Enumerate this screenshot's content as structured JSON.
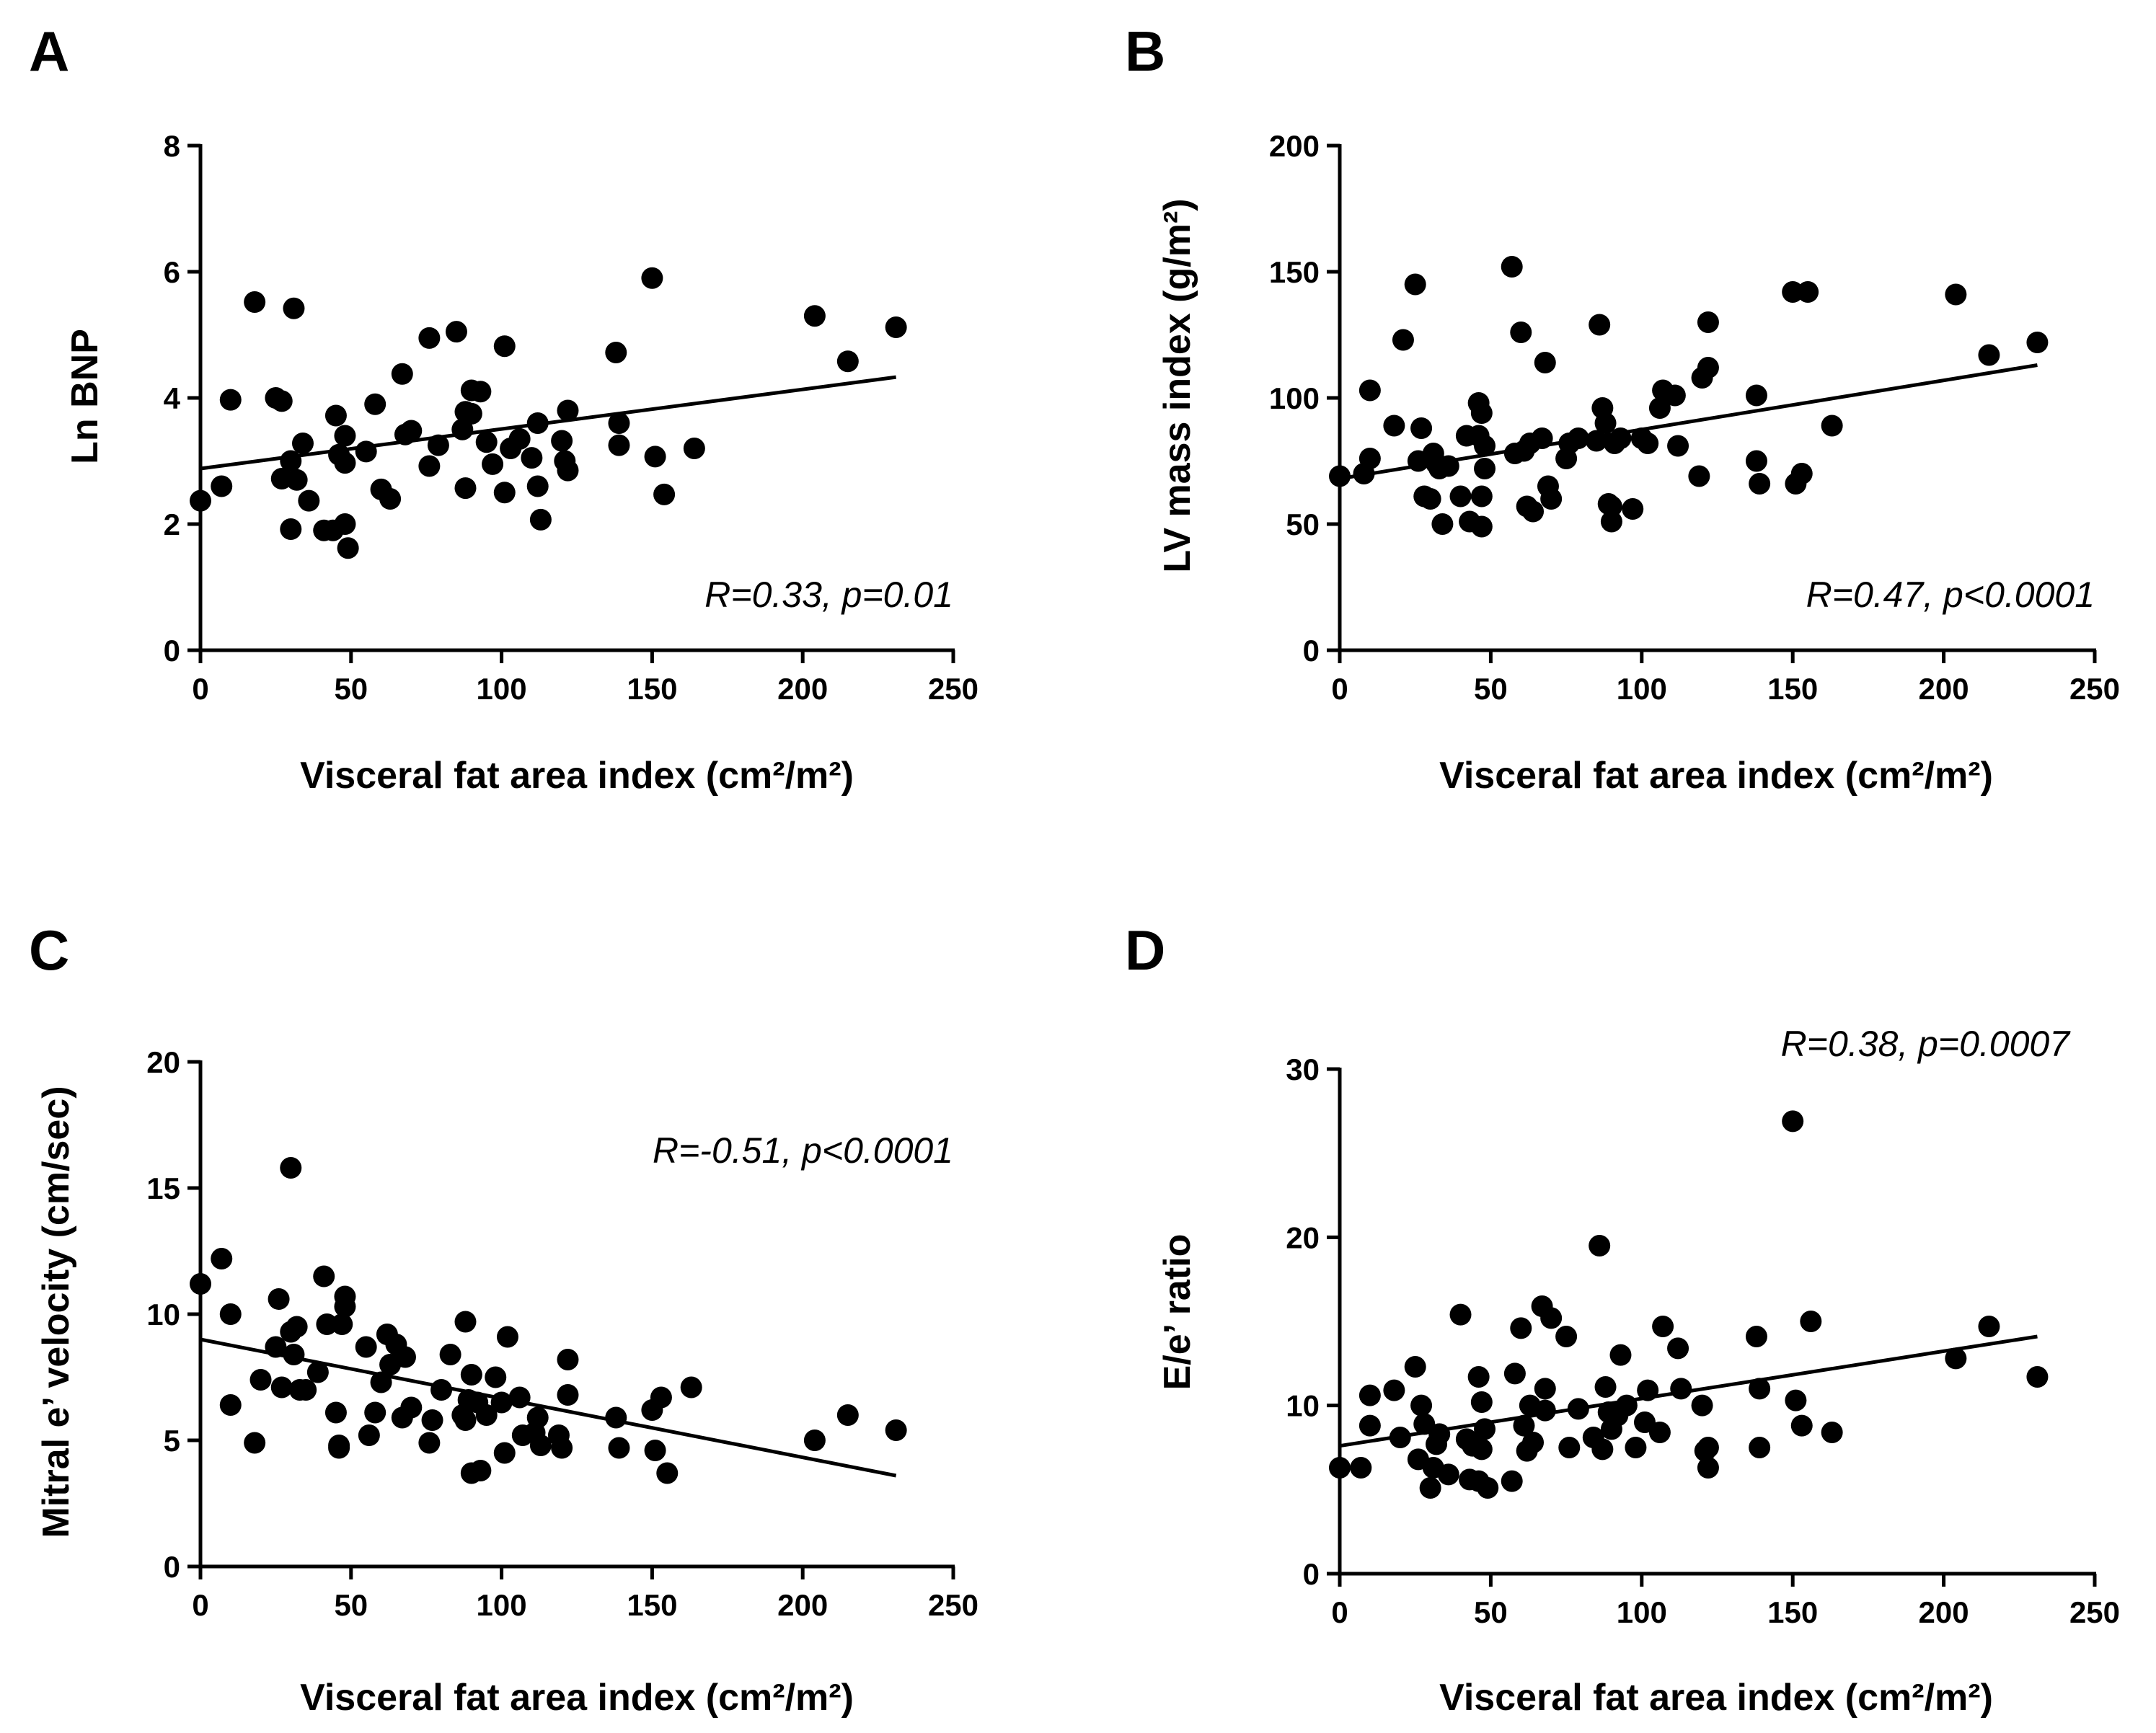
{
  "figure": {
    "panels": [
      "A",
      "B",
      "C",
      "D"
    ]
  },
  "chart_data": [
    {
      "panel": "A",
      "type": "scatter",
      "title": "",
      "xlabel": "Visceral fat area index (cm²/m²)",
      "ylabel": "Ln BNP",
      "xlim": [
        0,
        250
      ],
      "ylim": [
        0,
        8
      ],
      "xticks": [
        0,
        50,
        100,
        150,
        200,
        250
      ],
      "yticks": [
        0,
        2,
        4,
        6,
        8
      ],
      "annotation": "R=0.33, p=0.01",
      "annotation_position": "bottom-right",
      "fit": {
        "x": [
          0,
          231
        ],
        "y": [
          2.88,
          4.33
        ]
      },
      "points": [
        [
          0,
          2.37
        ],
        [
          7,
          2.6
        ],
        [
          10,
          3.97
        ],
        [
          18,
          5.52
        ],
        [
          25,
          4.0
        ],
        [
          27,
          3.95
        ],
        [
          27,
          2.72
        ],
        [
          30,
          3.0
        ],
        [
          30,
          1.92
        ],
        [
          31,
          5.42
        ],
        [
          32,
          2.7
        ],
        [
          34,
          3.28
        ],
        [
          36,
          2.37
        ],
        [
          41,
          1.9
        ],
        [
          44,
          1.9
        ],
        [
          45,
          3.72
        ],
        [
          46,
          3.1
        ],
        [
          48,
          2.97
        ],
        [
          48,
          3.4
        ],
        [
          48,
          2.0
        ],
        [
          49,
          1.62
        ],
        [
          55,
          3.15
        ],
        [
          58,
          3.9
        ],
        [
          60,
          2.55
        ],
        [
          63,
          2.4
        ],
        [
          67,
          4.38
        ],
        [
          68,
          3.42
        ],
        [
          70,
          3.48
        ],
        [
          76,
          2.92
        ],
        [
          76,
          4.95
        ],
        [
          79,
          3.25
        ],
        [
          85,
          5.05
        ],
        [
          87,
          3.5
        ],
        [
          88,
          2.57
        ],
        [
          88,
          3.78
        ],
        [
          90,
          4.12
        ],
        [
          90,
          3.75
        ],
        [
          93,
          4.1
        ],
        [
          95,
          3.3
        ],
        [
          97,
          2.95
        ],
        [
          101,
          2.5
        ],
        [
          101,
          4.82
        ],
        [
          103,
          3.2
        ],
        [
          106,
          3.35
        ],
        [
          110,
          3.05
        ],
        [
          112,
          2.6
        ],
        [
          112,
          3.6
        ],
        [
          113,
          2.07
        ],
        [
          120,
          3.32
        ],
        [
          121,
          3.0
        ],
        [
          122,
          2.85
        ],
        [
          122,
          3.8
        ],
        [
          138,
          4.72
        ],
        [
          139,
          3.25
        ],
        [
          139,
          3.6
        ],
        [
          150,
          5.9
        ],
        [
          151,
          3.07
        ],
        [
          154,
          2.47
        ],
        [
          164,
          3.2
        ],
        [
          204,
          5.3
        ],
        [
          215,
          4.58
        ],
        [
          231,
          5.12
        ]
      ]
    },
    {
      "panel": "B",
      "type": "scatter",
      "title": "",
      "xlabel": "Visceral fat area index (cm²/m²)",
      "ylabel": "LV mass index (g/m²)",
      "xlim": [
        0,
        250
      ],
      "ylim": [
        0,
        200
      ],
      "xticks": [
        0,
        50,
        100,
        150,
        200,
        250
      ],
      "yticks": [
        0,
        50,
        100,
        150,
        200
      ],
      "annotation": "R=0.47, p<0.0001",
      "annotation_position": "bottom-right",
      "fit": {
        "x": [
          0,
          231
        ],
        "y": [
          68,
          113
        ]
      },
      "points": [
        [
          0,
          69
        ],
        [
          8,
          70
        ],
        [
          10,
          103
        ],
        [
          10,
          76
        ],
        [
          18,
          89
        ],
        [
          21,
          123
        ],
        [
          25,
          145
        ],
        [
          26,
          75
        ],
        [
          27,
          88
        ],
        [
          28,
          61
        ],
        [
          30,
          60
        ],
        [
          31,
          78
        ],
        [
          32,
          74
        ],
        [
          33,
          72
        ],
        [
          34,
          50
        ],
        [
          36,
          73
        ],
        [
          40,
          61
        ],
        [
          42,
          85
        ],
        [
          43,
          51
        ],
        [
          46,
          85
        ],
        [
          46,
          98
        ],
        [
          47,
          94
        ],
        [
          47,
          49
        ],
        [
          47,
          61
        ],
        [
          48,
          72
        ],
        [
          48,
          81
        ],
        [
          57,
          152
        ],
        [
          58,
          78
        ],
        [
          60,
          126
        ],
        [
          61,
          79
        ],
        [
          62,
          57
        ],
        [
          63,
          82
        ],
        [
          64,
          55
        ],
        [
          67,
          84
        ],
        [
          68,
          114
        ],
        [
          69,
          65
        ],
        [
          70,
          60
        ],
        [
          75,
          76
        ],
        [
          76,
          82
        ],
        [
          79,
          84
        ],
        [
          85,
          83
        ],
        [
          86,
          129
        ],
        [
          87,
          96
        ],
        [
          88,
          90
        ],
        [
          89,
          58
        ],
        [
          90,
          51
        ],
        [
          90,
          57
        ],
        [
          91,
          82
        ],
        [
          93,
          84
        ],
        [
          97,
          56
        ],
        [
          100,
          84
        ],
        [
          102,
          82
        ],
        [
          106,
          96
        ],
        [
          107,
          103
        ],
        [
          111,
          101
        ],
        [
          112,
          81
        ],
        [
          119,
          69
        ],
        [
          120,
          108
        ],
        [
          122,
          112
        ],
        [
          122,
          130
        ],
        [
          138,
          101
        ],
        [
          138,
          75
        ],
        [
          139,
          66
        ],
        [
          150,
          142
        ],
        [
          151,
          66
        ],
        [
          153,
          70
        ],
        [
          155,
          142
        ],
        [
          163,
          89
        ],
        [
          204,
          141
        ],
        [
          215,
          117
        ],
        [
          231,
          122
        ]
      ]
    },
    {
      "panel": "C",
      "type": "scatter",
      "title": "",
      "xlabel": "Visceral fat area index (cm²/m²)",
      "ylabel": "Mitral e’ velocity (cm/sec)",
      "xlim": [
        0,
        250
      ],
      "ylim": [
        0,
        20
      ],
      "xticks": [
        0,
        50,
        100,
        150,
        200,
        250
      ],
      "yticks": [
        0,
        5,
        10,
        15,
        20
      ],
      "annotation": "R=-0.51, p<0.0001",
      "annotation_position": "top-right",
      "fit": {
        "x": [
          0,
          231
        ],
        "y": [
          9.0,
          3.6
        ]
      },
      "points": [
        [
          0,
          11.2
        ],
        [
          7,
          12.2
        ],
        [
          10,
          10.0
        ],
        [
          10,
          6.4
        ],
        [
          18,
          4.9
        ],
        [
          20,
          7.4
        ],
        [
          25,
          8.7
        ],
        [
          26,
          10.6
        ],
        [
          27,
          7.1
        ],
        [
          30,
          9.3
        ],
        [
          30,
          15.8
        ],
        [
          31,
          8.4
        ],
        [
          32,
          9.5
        ],
        [
          33,
          7.0
        ],
        [
          35,
          7.0
        ],
        [
          39,
          7.7
        ],
        [
          41,
          11.5
        ],
        [
          42,
          9.6
        ],
        [
          45,
          6.1
        ],
        [
          46,
          4.7
        ],
        [
          46,
          4.8
        ],
        [
          47,
          9.6
        ],
        [
          48,
          10.3
        ],
        [
          48,
          10.7
        ],
        [
          55,
          8.7
        ],
        [
          56,
          5.2
        ],
        [
          58,
          6.1
        ],
        [
          60,
          7.3
        ],
        [
          62,
          9.2
        ],
        [
          63,
          8.0
        ],
        [
          65,
          8.8
        ],
        [
          67,
          5.9
        ],
        [
          68,
          8.3
        ],
        [
          70,
          6.3
        ],
        [
          76,
          4.9
        ],
        [
          77,
          5.8
        ],
        [
          80,
          7.0
        ],
        [
          83,
          8.4
        ],
        [
          87,
          6.0
        ],
        [
          88,
          9.7
        ],
        [
          88,
          5.8
        ],
        [
          89,
          6.6
        ],
        [
          90,
          3.7
        ],
        [
          90,
          7.6
        ],
        [
          92,
          6.5
        ],
        [
          93,
          3.8
        ],
        [
          95,
          6.0
        ],
        [
          98,
          7.5
        ],
        [
          100,
          6.5
        ],
        [
          101,
          4.5
        ],
        [
          102,
          9.1
        ],
        [
          106,
          6.7
        ],
        [
          107,
          5.2
        ],
        [
          111,
          5.3
        ],
        [
          112,
          5.9
        ],
        [
          113,
          4.8
        ],
        [
          119,
          5.2
        ],
        [
          120,
          4.7
        ],
        [
          122,
          6.8
        ],
        [
          122,
          8.2
        ],
        [
          138,
          5.9
        ],
        [
          139,
          4.7
        ],
        [
          150,
          6.2
        ],
        [
          151,
          4.6
        ],
        [
          153,
          6.7
        ],
        [
          155,
          3.7
        ],
        [
          163,
          7.1
        ],
        [
          204,
          5.0
        ],
        [
          215,
          6.0
        ],
        [
          231,
          5.4
        ]
      ]
    },
    {
      "panel": "D",
      "type": "scatter",
      "title": "",
      "xlabel": "Visceral fat area index (cm²/m²)",
      "ylabel": "E/e’ ratio",
      "xlim": [
        0,
        250
      ],
      "ylim": [
        0,
        30
      ],
      "xticks": [
        0,
        50,
        100,
        150,
        200,
        250
      ],
      "yticks": [
        0,
        10,
        20,
        30
      ],
      "annotation": "R=0.38, p=0.0007",
      "annotation_position": "top-right",
      "fit": {
        "x": [
          0,
          231
        ],
        "y": [
          7.6,
          14.1
        ]
      },
      "points": [
        [
          0,
          6.3
        ],
        [
          7,
          6.3
        ],
        [
          10,
          10.6
        ],
        [
          10,
          8.8
        ],
        [
          18,
          10.9
        ],
        [
          20,
          8.1
        ],
        [
          25,
          12.3
        ],
        [
          26,
          6.8
        ],
        [
          27,
          10.0
        ],
        [
          28,
          8.9
        ],
        [
          30,
          5.1
        ],
        [
          31,
          6.3
        ],
        [
          32,
          7.7
        ],
        [
          33,
          8.3
        ],
        [
          36,
          5.9
        ],
        [
          40,
          15.4
        ],
        [
          42,
          8.0
        ],
        [
          43,
          5.6
        ],
        [
          44,
          7.6
        ],
        [
          46,
          5.5
        ],
        [
          46,
          11.7
        ],
        [
          47,
          7.4
        ],
        [
          47,
          10.2
        ],
        [
          48,
          8.6
        ],
        [
          49,
          5.1
        ],
        [
          57,
          5.5
        ],
        [
          58,
          11.9
        ],
        [
          60,
          14.6
        ],
        [
          61,
          8.8
        ],
        [
          62,
          7.3
        ],
        [
          63,
          10.0
        ],
        [
          64,
          7.8
        ],
        [
          67,
          15.9
        ],
        [
          68,
          9.7
        ],
        [
          68,
          11.0
        ],
        [
          70,
          15.2
        ],
        [
          75,
          14.1
        ],
        [
          76,
          7.5
        ],
        [
          79,
          9.8
        ],
        [
          84,
          8.1
        ],
        [
          86,
          19.5
        ],
        [
          87,
          7.4
        ],
        [
          88,
          11.1
        ],
        [
          89,
          9.6
        ],
        [
          90,
          8.6
        ],
        [
          92,
          9.4
        ],
        [
          93,
          13.0
        ],
        [
          95,
          10.0
        ],
        [
          98,
          7.5
        ],
        [
          101,
          9.0
        ],
        [
          102,
          10.9
        ],
        [
          106,
          8.4
        ],
        [
          107,
          14.7
        ],
        [
          112,
          13.4
        ],
        [
          113,
          11.0
        ],
        [
          120,
          10.0
        ],
        [
          121,
          7.3
        ],
        [
          122,
          6.3
        ],
        [
          122,
          7.5
        ],
        [
          138,
          14.1
        ],
        [
          139,
          7.5
        ],
        [
          139,
          11.0
        ],
        [
          150,
          26.9
        ],
        [
          151,
          10.3
        ],
        [
          153,
          8.8
        ],
        [
          156,
          15.0
        ],
        [
          163,
          8.4
        ],
        [
          204,
          12.8
        ],
        [
          215,
          14.7
        ],
        [
          231,
          11.7
        ]
      ]
    }
  ]
}
